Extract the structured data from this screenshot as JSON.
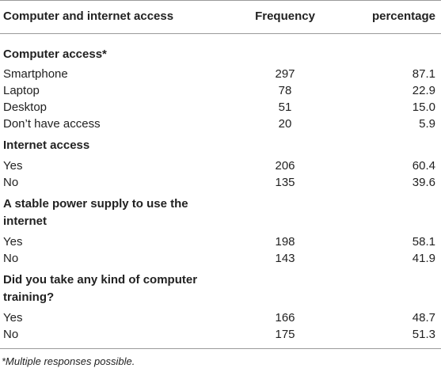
{
  "header": {
    "col1": "Computer and internet access",
    "col2": "Frequency",
    "col3": "percentage"
  },
  "sections": [
    {
      "title": "Computer access*",
      "rows": [
        {
          "label": "Smartphone",
          "frequency": "297",
          "percentage": "87.1"
        },
        {
          "label": "Laptop",
          "frequency": "78",
          "percentage": "22.9"
        },
        {
          "label": "Desktop",
          "frequency": "51",
          "percentage": "15.0"
        },
        {
          "label": "Don’t have access",
          "frequency": "20",
          "percentage": "5.9"
        }
      ]
    },
    {
      "title": "Internet access",
      "rows": [
        {
          "label": "Yes",
          "frequency": "206",
          "percentage": "60.4"
        },
        {
          "label": "No",
          "frequency": "135",
          "percentage": "39.6"
        }
      ]
    },
    {
      "title_line1": "A stable power supply to use the",
      "title_line2": "internet",
      "rows": [
        {
          "label": "Yes",
          "frequency": "198",
          "percentage": "58.1"
        },
        {
          "label": "No",
          "frequency": "143",
          "percentage": "41.9"
        }
      ]
    },
    {
      "title_line1": "Did you take any kind of computer",
      "title_line2": "training?",
      "rows": [
        {
          "label": "Yes",
          "frequency": "166",
          "percentage": "48.7"
        },
        {
          "label": "No",
          "frequency": "175",
          "percentage": "51.3"
        }
      ]
    }
  ],
  "footnote": "*Multiple responses possible."
}
